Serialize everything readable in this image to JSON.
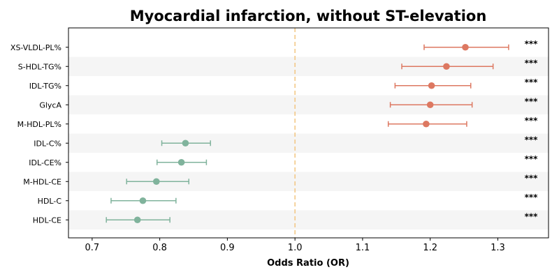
{
  "chart_data": {
    "type": "forest",
    "title": "Myocardial infarction, without ST-elevation",
    "xlabel": "Odds Ratio (OR)",
    "ylabel": "",
    "xlim": [
      0.665,
      1.375
    ],
    "xticks": [
      "0.7",
      "0.8",
      "0.9",
      "1.0",
      "1.1",
      "1.2",
      "1.3"
    ],
    "xtick_values": [
      0.7,
      0.8,
      0.9,
      1.0,
      1.1,
      1.2,
      1.3
    ],
    "reference_line": 1.0,
    "reference_line_style": "dashed",
    "grid": false,
    "legend": "none",
    "colors": {
      "risk": "#dd7861",
      "protective": "#80b39c",
      "reference": "#f2c680",
      "row_band": "#f5f5f5"
    },
    "categories": [
      "XS-VLDL-PL%",
      "S-HDL-TG%",
      "IDL-TG%",
      "GlycA",
      "M-HDL-PL%",
      "IDL-C%",
      "IDL-CE%",
      "M-HDL-CE",
      "HDL-C",
      "HDL-CE"
    ],
    "series": [
      {
        "or": [
          1.252,
          1.224,
          1.202,
          1.2,
          1.194,
          0.838,
          0.832,
          0.795,
          0.775,
          0.767
        ],
        "lower": [
          1.191,
          1.158,
          1.148,
          1.141,
          1.138,
          0.803,
          0.796,
          0.751,
          0.728,
          0.721
        ],
        "upper": [
          1.316,
          1.293,
          1.26,
          1.262,
          1.254,
          0.875,
          0.869,
          0.843,
          0.824,
          0.815
        ],
        "significance": [
          "***",
          "***",
          "***",
          "***",
          "***",
          "***",
          "***",
          "***",
          "***",
          "***"
        ]
      }
    ]
  }
}
